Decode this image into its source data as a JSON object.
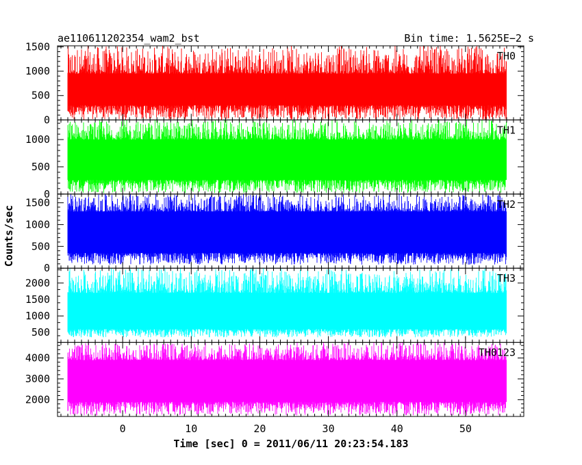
{
  "chart_data": {
    "type": "line",
    "title_left": "ae110611202354_wam2_bst",
    "title_right": "Bin time: 1.5625E−2 s",
    "xlabel": "Time [sec] 0 = 2011/06/11 20:23:54.183",
    "ylabel": "Counts/sec",
    "xlim": [
      -9.5,
      58.5
    ],
    "xticks": [
      0,
      10,
      20,
      30,
      40,
      50
    ],
    "xdata_range": [
      -8,
      56
    ],
    "grid": false,
    "panels": [
      {
        "name": "TH0",
        "color": "#ff0000",
        "ylim": [
          0,
          1520
        ],
        "yticks": [
          0,
          500,
          1000,
          1500
        ],
        "band": {
          "low": 0,
          "q_low": 300,
          "mean": 600,
          "q_high": 950,
          "high": 1520
        }
      },
      {
        "name": "TH1",
        "color": "#00ff00",
        "ylim": [
          0,
          1360
        ],
        "yticks": [
          0,
          500,
          1000
        ],
        "band": {
          "low": 20,
          "q_low": 260,
          "mean": 560,
          "q_high": 1000,
          "high": 1360
        }
      },
      {
        "name": "TH2",
        "color": "#0000ff",
        "ylim": [
          0,
          1700
        ],
        "yticks": [
          0,
          500,
          1000,
          1500
        ],
        "band": {
          "low": 80,
          "q_low": 350,
          "mean": 780,
          "q_high": 1300,
          "high": 1700
        }
      },
      {
        "name": "TH3",
        "color": "#00ffff",
        "ylim": [
          200,
          2450
        ],
        "yticks": [
          500,
          1000,
          1500,
          2000
        ],
        "band": {
          "low": 350,
          "q_low": 600,
          "mean": 1000,
          "q_high": 1700,
          "high": 2450
        }
      },
      {
        "name": "TH0123",
        "color": "#ff00ff",
        "ylim": [
          1200,
          4750
        ],
        "yticks": [
          2000,
          3000,
          4000
        ],
        "band": {
          "low": 1250,
          "q_low": 1900,
          "mean": 2700,
          "q_high": 3900,
          "high": 4750
        }
      }
    ]
  }
}
